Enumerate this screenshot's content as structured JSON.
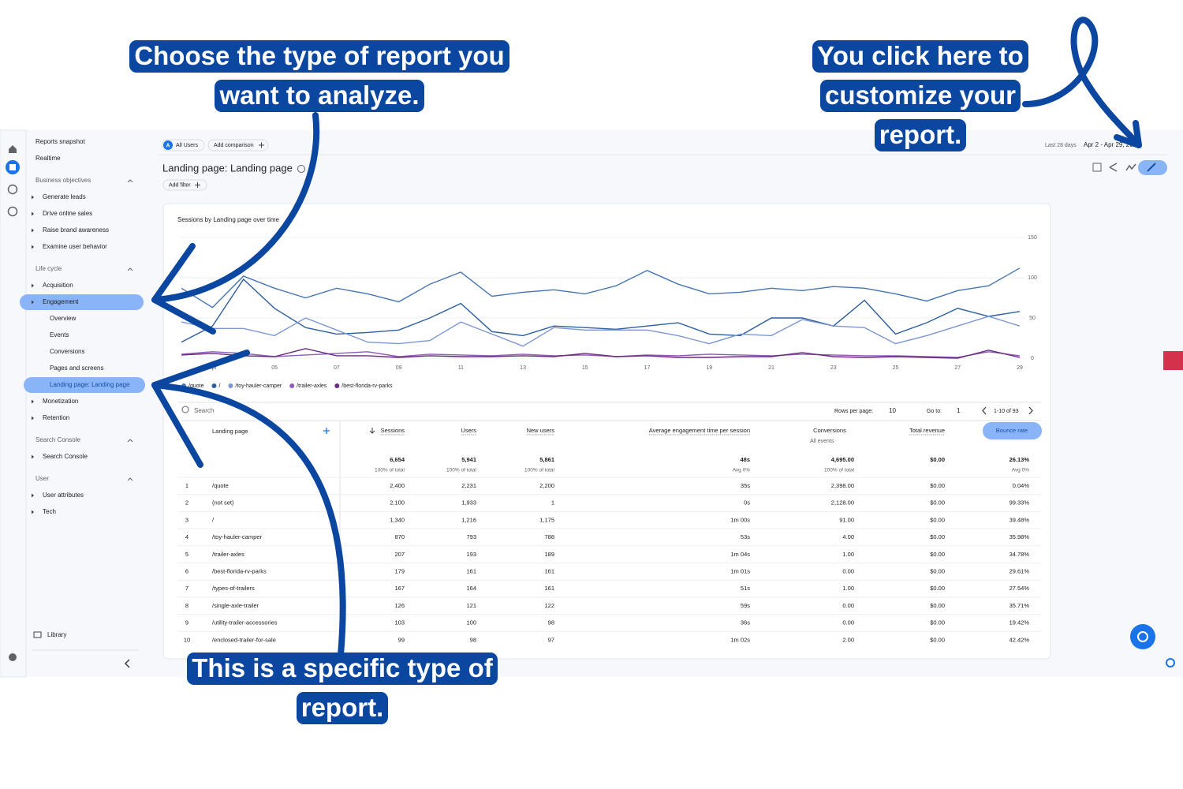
{
  "annotations": [
    [
      "Choose the type of report you",
      "want to analyze."
    ],
    [
      "You click here to",
      "customize your",
      "report."
    ],
    [
      "This is a specific type of",
      "report."
    ]
  ],
  "sidebar": {
    "top": [
      "Reports snapshot",
      "Realtime"
    ],
    "sections": [
      {
        "title": "Business objectives",
        "items": [
          "Generate leads",
          "Drive online sales",
          "Raise brand awareness",
          "Examine user behavior"
        ]
      },
      {
        "title": "Life cycle",
        "items": [
          "Acquisition",
          {
            "label": "Engagement",
            "children": [
              "Overview",
              "Events",
              "Conversions",
              "Pages and screens",
              "Landing page: Landing page"
            ]
          },
          "Monetization",
          "Retention"
        ]
      },
      {
        "title": "Search Console",
        "items": [
          "Search Console"
        ]
      },
      {
        "title": "User",
        "items": [
          "User attributes",
          "Tech"
        ]
      }
    ],
    "library": "Library"
  },
  "header": {
    "segment_initial": "A",
    "segment": "All Users",
    "add_comparison": "Add comparison",
    "date_label": "Last 28 days",
    "date_range": "Apr 2 - Apr 29, 2024",
    "page_title": "Landing page: Landing page",
    "add_filter": "Add filter"
  },
  "chart_data": {
    "type": "line",
    "title": "Sessions by Landing page over time",
    "categories": [
      null,
      "Apr",
      null,
      "05",
      null,
      "07",
      null,
      "09",
      null,
      "11",
      null,
      "13",
      null,
      "15",
      null,
      "17",
      null,
      "19",
      null,
      "21",
      null,
      "23",
      null,
      "25",
      null,
      "27",
      null,
      "29"
    ],
    "series": [
      {
        "name": "/quote",
        "color": "#4575b4",
        "values": [
          87,
          63,
          102,
          87,
          75,
          87,
          80,
          70,
          92,
          107,
          77,
          82,
          85,
          80,
          90,
          109,
          92,
          80,
          82,
          87,
          84,
          89,
          87,
          80,
          71,
          84,
          90,
          112
        ]
      },
      {
        "name": "/",
        "color": "#2c5f9e",
        "values": [
          20,
          40,
          98,
          62,
          38,
          30,
          32,
          35,
          50,
          68,
          33,
          28,
          40,
          38,
          36,
          40,
          44,
          30,
          28,
          50,
          50,
          40,
          72,
          30,
          44,
          62,
          52,
          58
        ]
      },
      {
        "name": "/toy-hauler-camper",
        "color": "#7d96d2",
        "values": [
          45,
          37,
          37,
          28,
          50,
          35,
          20,
          18,
          22,
          45,
          30,
          15,
          38,
          35,
          35,
          35,
          28,
          18,
          30,
          28,
          48,
          40,
          38,
          18,
          28,
          40,
          52,
          40
        ]
      },
      {
        "name": "/trailer-axles",
        "color": "#8e5bb8",
        "values": [
          5,
          8,
          6,
          2,
          4,
          6,
          8,
          2,
          5,
          4,
          3,
          5,
          3,
          4,
          2,
          4,
          3,
          5,
          4,
          3,
          5,
          4,
          3,
          3,
          2,
          1,
          8,
          3
        ]
      },
      {
        "name": "/best-florida-rv-parks",
        "color": "#6b2c7a",
        "values": [
          4,
          6,
          3,
          2,
          12,
          3,
          3,
          1,
          3,
          2,
          2,
          3,
          2,
          6,
          2,
          3,
          1,
          1,
          2,
          2,
          7,
          2,
          1,
          2,
          1,
          0,
          10,
          1
        ]
      }
    ],
    "ylim": [
      0,
      150
    ],
    "yticks": [
      0,
      50,
      100,
      150
    ],
    "grid": true
  },
  "table": {
    "search": "Search",
    "rows_per_page_label": "Rows per page:",
    "rows_per_page": "10",
    "goto_label": "Go to:",
    "goto": "1",
    "range": "1-10 of 93",
    "columns": [
      "Landing page",
      "Sessions",
      "Users",
      "New users",
      "Average engagement time per session",
      "Conversions",
      "Total revenue",
      "Bounce rate"
    ],
    "conversions_filter": "All events",
    "totals": [
      {
        "value": "6,654",
        "sub": "100% of total"
      },
      {
        "value": "5,941",
        "sub": "100% of total"
      },
      {
        "value": "5,861",
        "sub": "100% of total"
      },
      {
        "value": "48s",
        "sub": "Avg 0%"
      },
      {
        "value": "4,695.00",
        "sub": "100% of total"
      },
      {
        "value": "$0.00"
      },
      {
        "value": "26.13%",
        "sub": "Avg 0%"
      }
    ],
    "rows": [
      [
        "1",
        "/quote",
        "2,400",
        "2,231",
        "2,200",
        "35s",
        "2,398.00",
        "$0.00",
        "0.04%"
      ],
      [
        "2",
        "(not set)",
        "2,100",
        "1,933",
        "1",
        "0s",
        "2,128.00",
        "$0.00",
        "99.33%"
      ],
      [
        "3",
        "/",
        "1,340",
        "1,216",
        "1,175",
        "1m 00s",
        "91.00",
        "$0.00",
        "39.48%"
      ],
      [
        "4",
        "/toy-hauler-camper",
        "870",
        "793",
        "788",
        "53s",
        "4.00",
        "$0.00",
        "35.98%"
      ],
      [
        "5",
        "/trailer-axles",
        "207",
        "193",
        "189",
        "1m 04s",
        "1.00",
        "$0.00",
        "34.78%"
      ],
      [
        "6",
        "/best-florida-rv-parks",
        "179",
        "161",
        "161",
        "1m 01s",
        "0.00",
        "$0.00",
        "29.61%"
      ],
      [
        "7",
        "/types-of-trailers",
        "167",
        "164",
        "161",
        "51s",
        "1.00",
        "$0.00",
        "27.54%"
      ],
      [
        "8",
        "/single-axle-trailer",
        "126",
        "121",
        "122",
        "59s",
        "0.00",
        "$0.00",
        "35.71%"
      ],
      [
        "9",
        "/utility-trailer-accessories",
        "103",
        "100",
        "98",
        "36s",
        "0.00",
        "$0.00",
        "19.42%"
      ],
      [
        "10",
        "/enclosed-trailer-for-sale",
        "99",
        "98",
        "97",
        "1m 02s",
        "2.00",
        "$0.00",
        "42.42%"
      ]
    ]
  }
}
